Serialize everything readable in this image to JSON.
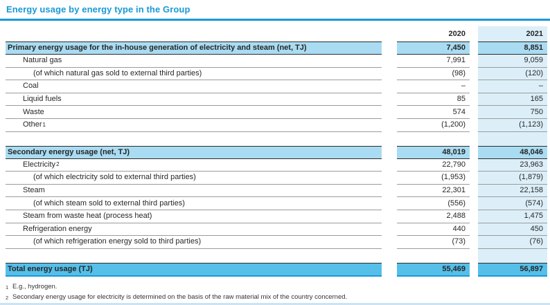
{
  "title": "Energy usage by energy type in the Group",
  "colors": {
    "accent": "#1899D6",
    "section_bg": "#A9DCF2",
    "column_tint": "#DCEFF9",
    "total_bg": "#55BFE9",
    "border_dark": "#2B2B2B",
    "border_gray": "#9B9B9B",
    "bottom_strip": "#CBE3F2"
  },
  "table": {
    "columns": [
      "2020",
      "2021"
    ],
    "rows": [
      {
        "type": "section",
        "label": "Primary energy usage for the in-house generation of electricity and steam (net, TJ)",
        "v2020": "7,450",
        "v2021": "8,851"
      },
      {
        "type": "item",
        "label": "Natural gas",
        "v2020": "7,991",
        "v2021": "9,059"
      },
      {
        "type": "subitem",
        "label": "(of which natural gas sold to external third parties)",
        "v2020": "(98)",
        "v2021": "(120)"
      },
      {
        "type": "item",
        "label": "Coal",
        "v2020": "–",
        "v2021": "–"
      },
      {
        "type": "item",
        "label": "Liquid fuels",
        "v2020": "85",
        "v2021": "165"
      },
      {
        "type": "item",
        "label": "Waste",
        "v2020": "574",
        "v2021": "750"
      },
      {
        "type": "item",
        "label": "Other",
        "sup": "1",
        "v2020": "(1,200)",
        "v2021": "(1,123)"
      },
      {
        "type": "spacer",
        "label": "",
        "v2020": "",
        "v2021": ""
      },
      {
        "type": "section",
        "label": "Secondary energy usage (net, TJ)",
        "v2020": "48,019",
        "v2021": "48,046"
      },
      {
        "type": "item",
        "label": "Electricity",
        "sup": "2",
        "v2020": "22,790",
        "v2021": "23,963"
      },
      {
        "type": "subitem",
        "label": "(of which electricity sold to external third parties)",
        "v2020": "(1,953)",
        "v2021": "(1,879)"
      },
      {
        "type": "item",
        "label": "Steam",
        "v2020": "22,301",
        "v2021": "22,158"
      },
      {
        "type": "subitem",
        "label": "(of which steam sold to external third parties)",
        "v2020": "(556)",
        "v2021": "(574)"
      },
      {
        "type": "item",
        "label": "Steam from waste heat (process heat)",
        "v2020": "2,488",
        "v2021": "1,475"
      },
      {
        "type": "item",
        "label": "Refrigeration energy",
        "v2020": "440",
        "v2021": "450"
      },
      {
        "type": "subitem",
        "label": "(of which refrigeration energy sold to third parties)",
        "v2020": "(73)",
        "v2021": "(76)"
      },
      {
        "type": "spacer",
        "label": "",
        "v2020": "",
        "v2021": ""
      },
      {
        "type": "total",
        "label": "Total energy usage (TJ)",
        "v2020": "55,469",
        "v2021": "56,897"
      }
    ]
  },
  "footnotes": [
    {
      "marker": "1",
      "text": "E.g., hydrogen."
    },
    {
      "marker": "2",
      "text": "Secondary energy usage for electricity is determined on the basis of the raw material mix of the country concerned."
    }
  ]
}
